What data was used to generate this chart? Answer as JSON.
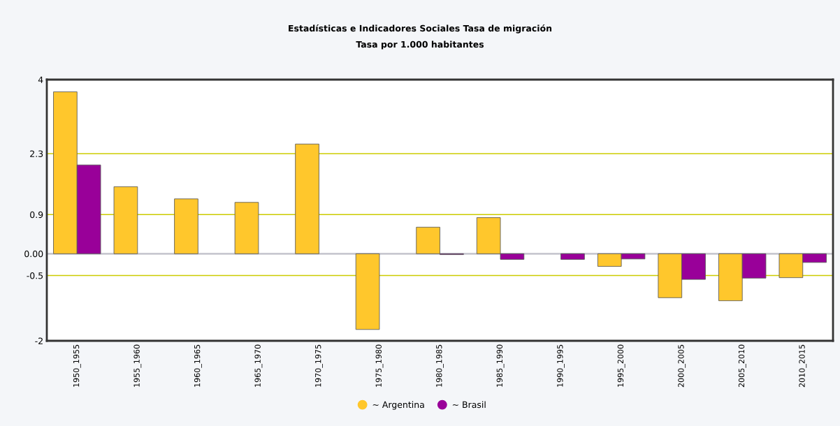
{
  "chart_data": {
    "type": "bar",
    "title": "Estadísticas e Indicadores Sociales Tasa de migración",
    "subtitle": "Tasa por 1.000 habitantes",
    "categories": [
      "1950_1955",
      "1955_1960",
      "1960_1965",
      "1965_1970",
      "1970_1975",
      "1975_1980",
      "1980_1985",
      "1985_1990",
      "1990_1995",
      "1995_2000",
      "2000_2005",
      "2005_2010",
      "2010_2015"
    ],
    "series": [
      {
        "name": "~ Argentina",
        "color": "#ffc72c",
        "values": [
          3.72,
          1.54,
          1.26,
          1.18,
          2.52,
          -1.74,
          0.61,
          0.83,
          null,
          -0.29,
          -1.01,
          -1.08,
          -0.55
        ]
      },
      {
        "name": "~ Brasil",
        "color": "#990099",
        "values": [
          2.04,
          null,
          null,
          null,
          null,
          null,
          -0.02,
          -0.13,
          -0.13,
          -0.12,
          -0.59,
          -0.56,
          -0.2
        ]
      }
    ],
    "ylim": [
      -2,
      4
    ],
    "yticks": [
      4,
      2.3,
      0.9,
      {
        "value": 0,
        "label": "0.00"
      },
      -0.5,
      -2
    ],
    "ref_lines": [
      {
        "axis": "y",
        "value": 0,
        "color": "#c8c8d0"
      }
    ],
    "grid": "y",
    "legend": "bottom"
  }
}
